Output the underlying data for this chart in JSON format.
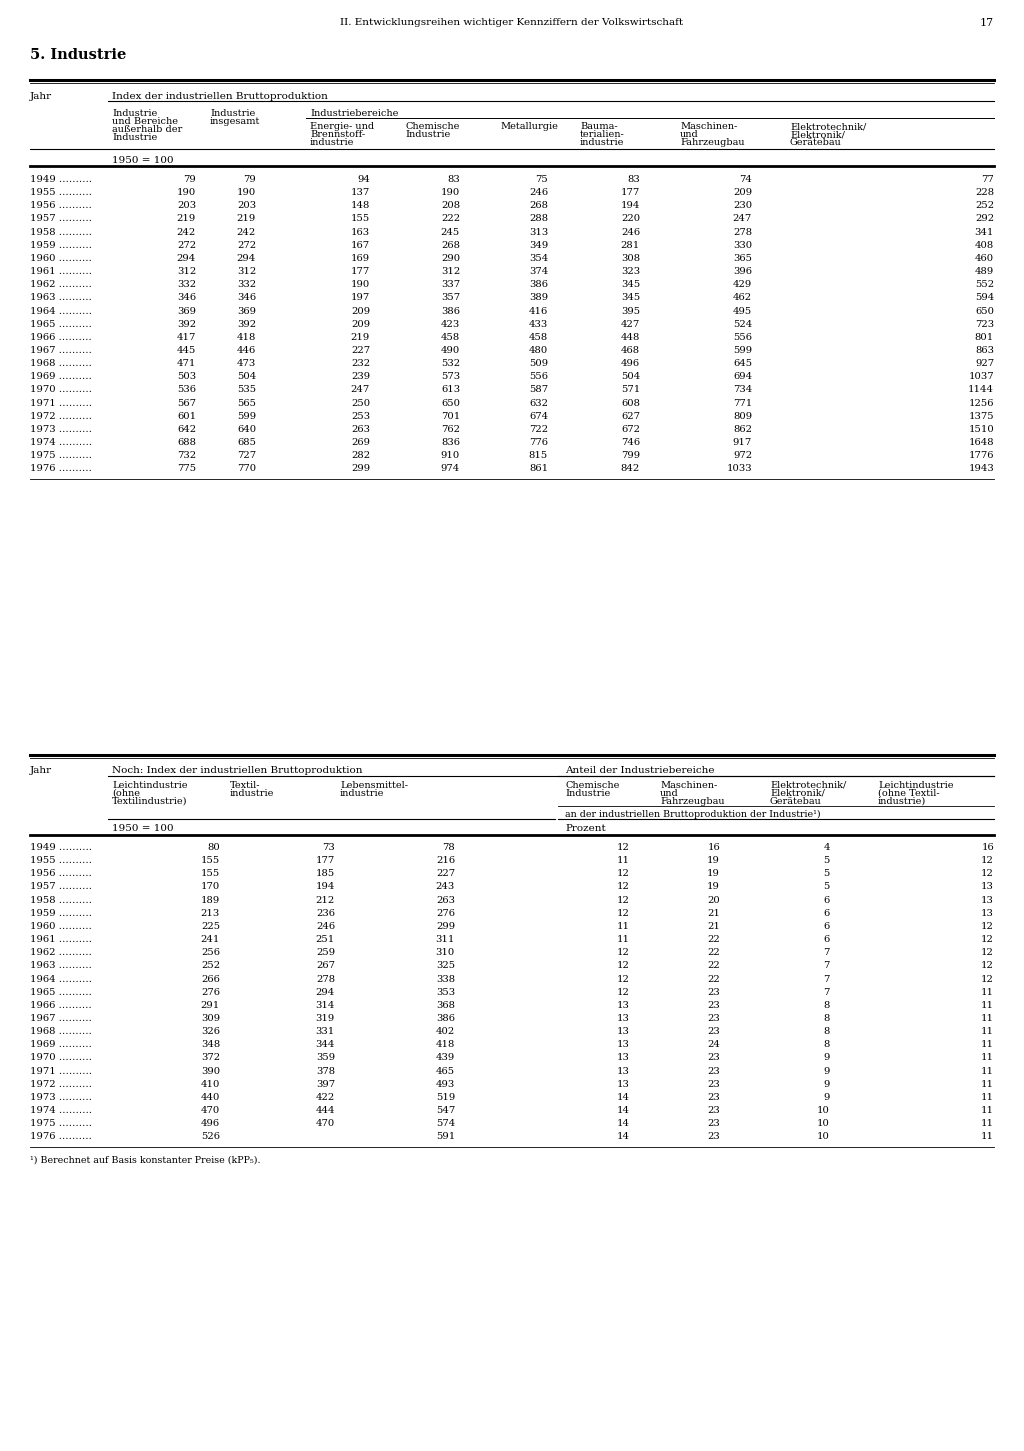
{
  "page_header": "II. Entwicklungsreihen wichtiger Kennziffern der Volkswirtschaft",
  "page_number": "17",
  "section_title": "5. Industrie",
  "table1": {
    "years": [
      1949,
      1955,
      1956,
      1957,
      1958,
      1959,
      1960,
      1961,
      1962,
      1963,
      1964,
      1965,
      1966,
      1967,
      1968,
      1969,
      1970,
      1971,
      1972,
      1973,
      1974,
      1975,
      1976
    ],
    "col1": [
      79,
      190,
      203,
      219,
      242,
      272,
      294,
      312,
      332,
      346,
      369,
      392,
      417,
      445,
      471,
      503,
      536,
      567,
      601,
      642,
      688,
      732,
      775
    ],
    "col2": [
      79,
      190,
      203,
      219,
      242,
      272,
      294,
      312,
      332,
      346,
      369,
      392,
      418,
      446,
      473,
      504,
      535,
      565,
      599,
      640,
      685,
      727,
      770
    ],
    "col3": [
      94,
      137,
      148,
      155,
      163,
      167,
      169,
      177,
      190,
      197,
      209,
      209,
      219,
      227,
      232,
      239,
      247,
      250,
      253,
      263,
      269,
      282,
      299
    ],
    "col4": [
      83,
      190,
      208,
      222,
      245,
      268,
      290,
      312,
      337,
      357,
      386,
      423,
      458,
      490,
      532,
      573,
      613,
      650,
      701,
      762,
      836,
      910,
      974
    ],
    "col5": [
      75,
      246,
      268,
      288,
      313,
      349,
      354,
      374,
      386,
      389,
      416,
      433,
      458,
      480,
      509,
      556,
      587,
      632,
      674,
      722,
      776,
      815,
      861
    ],
    "col6": [
      83,
      177,
      194,
      220,
      246,
      281,
      308,
      323,
      345,
      345,
      395,
      427,
      448,
      468,
      496,
      504,
      571,
      608,
      627,
      672,
      746,
      799,
      842
    ],
    "col7": [
      74,
      209,
      230,
      247,
      278,
      330,
      365,
      396,
      429,
      462,
      495,
      524,
      556,
      599,
      645,
      694,
      734,
      771,
      809,
      862,
      917,
      972,
      1033
    ],
    "col8": [
      77,
      228,
      252,
      292,
      341,
      408,
      460,
      489,
      552,
      594,
      650,
      723,
      801,
      863,
      927,
      1037,
      1144,
      1256,
      1375,
      1510,
      1648,
      1776,
      1943
    ]
  },
  "table2": {
    "years": [
      1949,
      1955,
      1956,
      1957,
      1958,
      1959,
      1960,
      1961,
      1962,
      1963,
      1964,
      1965,
      1966,
      1967,
      1968,
      1969,
      1970,
      1971,
      1972,
      1973,
      1974,
      1975,
      1976
    ],
    "col1": [
      80,
      155,
      155,
      170,
      189,
      213,
      225,
      241,
      256,
      252,
      266,
      276,
      291,
      309,
      326,
      348,
      372,
      390,
      410,
      440,
      470,
      496,
      526
    ],
    "col2": [
      73,
      177,
      185,
      194,
      212,
      236,
      246,
      251,
      259,
      267,
      278,
      294,
      314,
      319,
      331,
      344,
      359,
      378,
      397,
      422,
      444,
      470,
      null
    ],
    "col3": [
      78,
      216,
      227,
      243,
      263,
      276,
      299,
      311,
      310,
      325,
      338,
      353,
      368,
      386,
      402,
      418,
      439,
      465,
      493,
      519,
      547,
      574,
      591
    ],
    "col4": [
      12,
      11,
      12,
      12,
      12,
      12,
      11,
      11,
      12,
      12,
      12,
      12,
      13,
      13,
      13,
      13,
      13,
      13,
      13,
      14,
      14,
      14,
      14
    ],
    "col5": [
      16,
      19,
      19,
      19,
      20,
      21,
      21,
      22,
      22,
      22,
      22,
      23,
      23,
      23,
      23,
      24,
      23,
      23,
      23,
      23,
      23,
      23,
      23
    ],
    "col6": [
      4,
      5,
      5,
      5,
      6,
      6,
      6,
      6,
      7,
      7,
      7,
      7,
      8,
      8,
      8,
      8,
      9,
      9,
      9,
      9,
      10,
      10,
      10
    ],
    "col7": [
      16,
      12,
      12,
      13,
      13,
      13,
      12,
      12,
      12,
      12,
      12,
      11,
      11,
      11,
      11,
      11,
      11,
      11,
      11,
      11,
      11,
      11,
      11
    ]
  },
  "footnote": "¹) Berechnet auf Basis konstanter Preise (kPP₅)."
}
